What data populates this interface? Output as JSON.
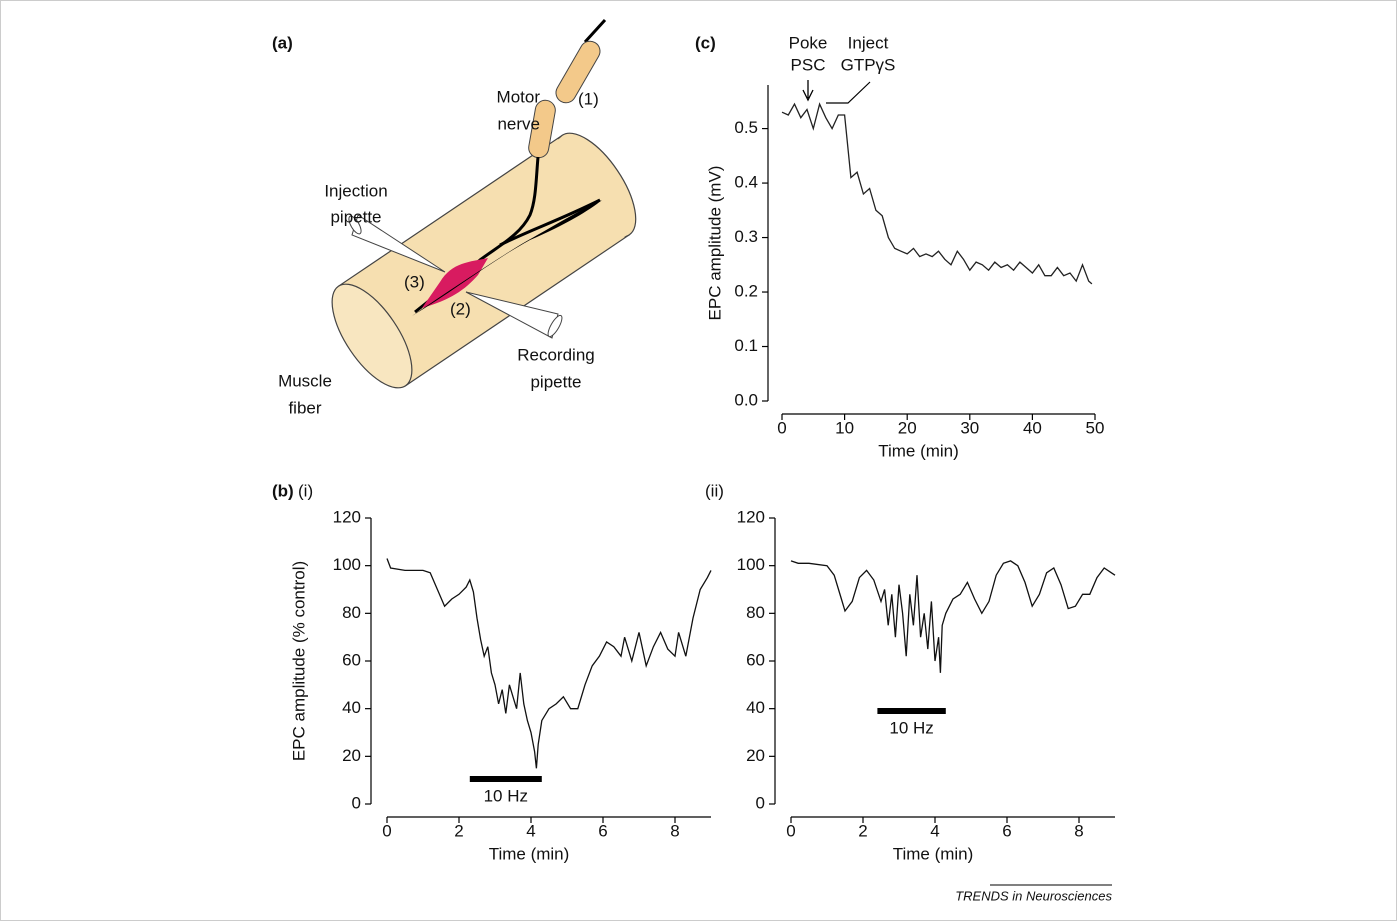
{
  "figure": {
    "panel_a": "(a)",
    "panel_b": "(b)",
    "panel_c": "(c)",
    "sub_i": "(i)",
    "sub_ii": "(ii)",
    "source": "TRENDS in Neurosciences"
  },
  "diagram": {
    "motor_nerve": [
      "Motor",
      "nerve"
    ],
    "node_1": "(1)",
    "node_2": "(2)",
    "node_3": "(3)",
    "injection_pipette": [
      "Injection",
      "pipette"
    ],
    "recording_pipette": [
      "Recording",
      "pipette"
    ],
    "muscle_fiber": [
      "Muscle",
      "fiber"
    ]
  },
  "chart_data": [
    {
      "type": "line",
      "xlabel": "Time (min)",
      "ylabel": "EPC amplitude (mV)",
      "color": "#222222",
      "annotations": [
        [
          "Poke",
          "PSC"
        ],
        [
          "Inject",
          "GTPγS"
        ]
      ],
      "x": [
        0,
        1,
        2,
        3,
        4,
        5,
        6,
        7,
        8,
        9,
        10,
        11,
        12,
        13,
        14,
        15,
        16,
        17,
        18,
        19,
        20,
        21,
        22,
        23,
        24,
        25,
        26,
        27,
        28,
        29,
        30,
        31,
        32,
        33,
        34,
        35,
        36,
        37,
        38,
        39,
        40,
        41,
        42,
        43,
        44,
        45,
        46,
        47,
        48,
        49,
        49.5
      ],
      "values": [
        0.53,
        0.525,
        0.545,
        0.52,
        0.535,
        0.5,
        0.545,
        0.52,
        0.5,
        0.525,
        0.525,
        0.41,
        0.42,
        0.38,
        0.39,
        0.35,
        0.34,
        0.3,
        0.28,
        0.275,
        0.27,
        0.28,
        0.265,
        0.27,
        0.265,
        0.275,
        0.26,
        0.25,
        0.275,
        0.26,
        0.24,
        0.255,
        0.25,
        0.24,
        0.255,
        0.245,
        0.25,
        0.24,
        0.255,
        0.245,
        0.235,
        0.25,
        0.23,
        0.23,
        0.245,
        0.23,
        0.235,
        0.22,
        0.25,
        0.22,
        0.215
      ],
      "xlim": [
        0,
        50
      ],
      "ylim": [
        0,
        0.58
      ],
      "xticks": [
        0,
        10,
        20,
        30,
        40,
        50
      ],
      "yticks": [
        {
          "value": 0,
          "label": "0.0"
        },
        0.1,
        0.2,
        0.3,
        0.4,
        0.5
      ]
    },
    {
      "type": "line",
      "xlabel": "Time (min)",
      "ylabel": "EPC amplitude (% control)",
      "color": "#111111",
      "stimulus": {
        "label": "10 Hz",
        "xrange": [
          2.3,
          4.3
        ]
      },
      "x": [
        0,
        0.1,
        0.5,
        1,
        1.2,
        1.4,
        1.6,
        1.8,
        2,
        2.2,
        2.3,
        2.4,
        2.5,
        2.6,
        2.7,
        2.8,
        2.9,
        3,
        3.1,
        3.2,
        3.3,
        3.4,
        3.5,
        3.6,
        3.7,
        3.8,
        3.9,
        4,
        4.1,
        4.15,
        4.2,
        4.3,
        4.5,
        4.7,
        4.9,
        5.1,
        5.3,
        5.5,
        5.7,
        5.9,
        6.1,
        6.3,
        6.5,
        6.6,
        6.8,
        7,
        7.2,
        7.4,
        7.6,
        7.8,
        8,
        8.1,
        8.3,
        8.5,
        8.7,
        8.9,
        9
      ],
      "values": [
        103,
        99,
        98,
        98,
        97,
        90,
        83,
        86,
        88,
        91,
        94,
        89,
        78,
        69,
        62,
        66,
        55,
        50,
        42,
        48,
        38,
        50,
        45,
        40,
        55,
        42,
        35,
        30,
        22,
        15,
        25,
        35,
        40,
        42,
        45,
        40,
        40,
        50,
        58,
        62,
        68,
        66,
        62,
        70,
        60,
        72,
        58,
        66,
        72,
        65,
        62,
        72,
        62,
        78,
        90,
        95,
        98
      ],
      "xlim": [
        0,
        9
      ],
      "ylim": [
        0,
        120
      ],
      "xticks": [
        0,
        2,
        4,
        6,
        8
      ],
      "yticks": [
        0,
        20,
        40,
        60,
        80,
        100,
        120
      ]
    },
    {
      "type": "line",
      "xlabel": "Time (min)",
      "color": "#111111",
      "stimulus": {
        "label": "10 Hz",
        "xrange": [
          2.4,
          4.3
        ]
      },
      "x": [
        0,
        0.2,
        0.5,
        1,
        1.2,
        1.4,
        1.5,
        1.7,
        1.9,
        2.1,
        2.3,
        2.5,
        2.6,
        2.7,
        2.8,
        2.9,
        3,
        3.1,
        3.2,
        3.3,
        3.4,
        3.5,
        3.6,
        3.7,
        3.8,
        3.9,
        4,
        4.1,
        4.15,
        4.2,
        4.3,
        4.5,
        4.7,
        4.9,
        5.1,
        5.3,
        5.5,
        5.7,
        5.9,
        6.1,
        6.3,
        6.5,
        6.7,
        6.9,
        7.1,
        7.3,
        7.5,
        7.7,
        7.9,
        8.1,
        8.3,
        8.5,
        8.7,
        8.9,
        9
      ],
      "values": [
        102,
        101,
        101,
        100,
        96,
        86,
        81,
        85,
        95,
        98,
        94,
        85,
        90,
        75,
        88,
        70,
        92,
        80,
        62,
        88,
        75,
        96,
        70,
        80,
        65,
        85,
        60,
        70,
        55,
        75,
        80,
        86,
        88,
        93,
        86,
        80,
        85,
        96,
        101,
        102,
        100,
        93,
        83,
        88,
        97,
        99,
        92,
        82,
        83,
        88,
        88,
        95,
        99,
        97,
        96
      ],
      "xlim": [
        0,
        9
      ],
      "ylim": [
        0,
        120
      ],
      "xticks": [
        0,
        2,
        4,
        6,
        8
      ],
      "yticks": [
        0,
        20,
        40,
        60,
        80,
        100,
        120
      ]
    }
  ]
}
